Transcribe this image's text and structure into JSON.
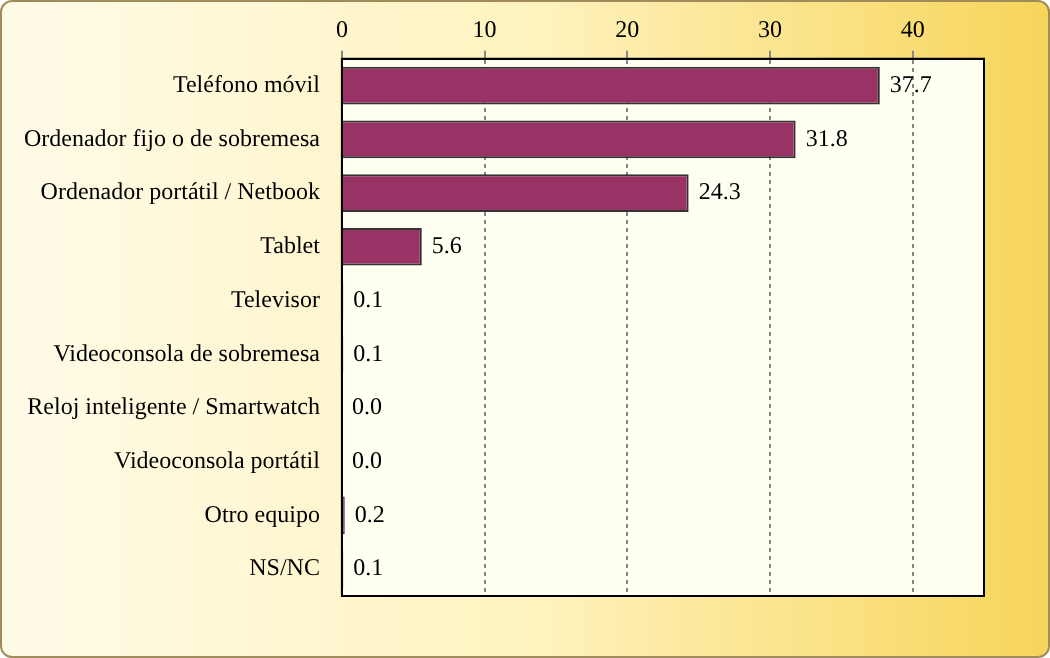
{
  "chart_data": {
    "type": "bar",
    "orientation": "horizontal",
    "categories": [
      "Teléfono móvil",
      "Ordenador fijo o de sobremesa",
      "Ordenador portátil / Netbook",
      "Tablet",
      "Televisor",
      "Videoconsola de sobremesa",
      "Reloj inteligente / Smartwatch",
      "Videoconsola portátil",
      "Otro equipo",
      "NS/NC"
    ],
    "values": [
      37.7,
      31.8,
      24.3,
      5.6,
      0.1,
      0.1,
      0.0,
      0.0,
      0.2,
      0.1
    ],
    "value_labels": [
      "37.7",
      "31.8",
      "24.3",
      "5.6",
      "0.1",
      "0.1",
      "0.0",
      "0.0",
      "0.2",
      "0.1"
    ],
    "color": "#993366",
    "xlim": [
      0,
      45
    ],
    "xticks": [
      0,
      10,
      20,
      30,
      40
    ],
    "grid": "x",
    "legend": false
  }
}
